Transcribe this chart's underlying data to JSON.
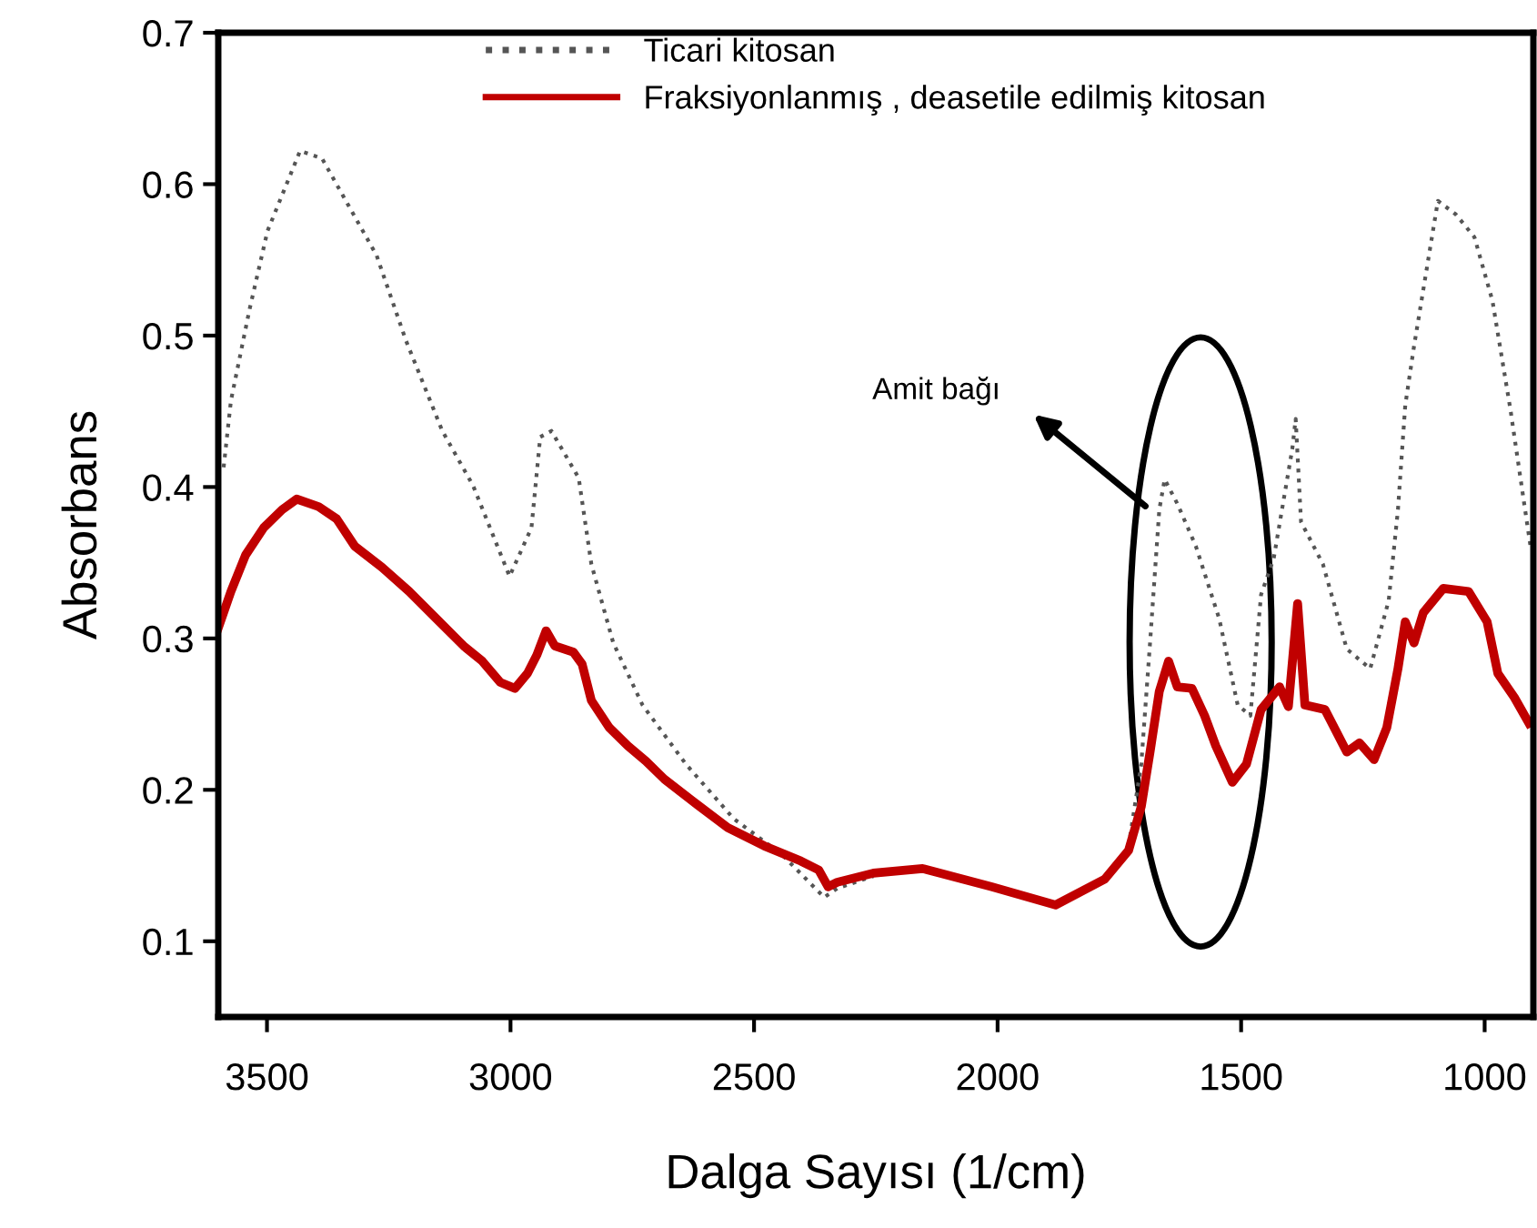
{
  "chart_data": {
    "type": "line",
    "xlabel": "Dalga Sayısı (1/cm)",
    "ylabel": "Absorbans",
    "xlim": [
      3600,
      900
    ],
    "xticks": [
      3500,
      3000,
      2500,
      2000,
      1500,
      1000
    ],
    "ylim": [
      0.05,
      0.7
    ],
    "yticks": [
      0.1,
      0.2,
      0.3,
      0.4,
      0.5,
      0.6,
      0.7
    ],
    "grid": false,
    "legend": "top",
    "annotations": [
      "Amit bağı"
    ],
    "series": [
      {
        "name": "Ticari kitosan",
        "color": "#555555",
        "line_style": "dotted",
        "x": [
          3589,
          3574,
          3536,
          3499,
          3432,
          3387,
          3338,
          3275,
          3215,
          3140,
          3077,
          3002,
          2957,
          2939,
          2916,
          2860,
          2834,
          2789,
          2729,
          2640,
          2542,
          2442,
          2356,
          2329,
          2255,
          2154,
          2012,
          1881,
          1780,
          1731,
          1705,
          1687,
          1668,
          1657,
          1631,
          1593,
          1545,
          1507,
          1481,
          1459,
          1433,
          1395,
          1388,
          1377,
          1332,
          1283,
          1235,
          1197,
          1178,
          1163,
          1145,
          1096,
          1059,
          1021,
          984,
          947,
          917,
          906
        ],
        "values": [
          0.413,
          0.457,
          0.517,
          0.569,
          0.622,
          0.617,
          0.589,
          0.553,
          0.497,
          0.437,
          0.401,
          0.341,
          0.373,
          0.433,
          0.437,
          0.406,
          0.349,
          0.297,
          0.256,
          0.217,
          0.181,
          0.157,
          0.129,
          0.135,
          0.143,
          null,
          null,
          null,
          null,
          0.163,
          0.217,
          0.297,
          0.385,
          0.405,
          0.389,
          0.361,
          0.313,
          0.256,
          0.249,
          0.329,
          0.353,
          0.425,
          0.445,
          0.377,
          0.349,
          0.293,
          0.28,
          0.325,
          0.385,
          0.454,
          0.493,
          0.589,
          0.58,
          0.565,
          0.523,
          0.451,
          0.385,
          0.361
        ]
      },
      {
        "name": "Fraksiyonlanmış , deasetile edilmiş kitosan",
        "color": "#c00000",
        "line_style": "solid",
        "x": [
          3600,
          3574,
          3544,
          3507,
          3469,
          3439,
          3394,
          3357,
          3320,
          3264,
          3208,
          3152,
          3096,
          3058,
          3021,
          2991,
          2965,
          2946,
          2927,
          2909,
          2871,
          2853,
          2834,
          2797,
          2759,
          2722,
          2684,
          2628,
          2554,
          2479,
          2404,
          2367,
          2348,
          2329,
          2255,
          2154,
          2012,
          1881,
          1780,
          1731,
          1705,
          1687,
          1668,
          1649,
          1631,
          1601,
          1575,
          1552,
          1518,
          1489,
          1459,
          1421,
          1403,
          1384,
          1369,
          1328,
          1283,
          1257,
          1227,
          1201,
          1178,
          1163,
          1145,
          1126,
          1085,
          1033,
          995,
          973,
          939,
          909
        ],
        "values": [
          0.307,
          0.331,
          0.355,
          0.373,
          0.385,
          0.392,
          0.387,
          0.379,
          0.361,
          0.347,
          0.331,
          0.313,
          0.295,
          0.285,
          0.271,
          0.267,
          0.277,
          0.289,
          0.305,
          0.295,
          0.291,
          0.283,
          0.259,
          0.241,
          0.229,
          0.219,
          0.207,
          0.193,
          0.175,
          0.163,
          0.153,
          0.147,
          0.136,
          0.139,
          0.145,
          0.148,
          0.136,
          0.124,
          0.141,
          0.16,
          0.189,
          0.225,
          0.265,
          0.285,
          0.268,
          0.267,
          0.249,
          0.229,
          0.205,
          0.217,
          0.253,
          0.268,
          0.255,
          0.323,
          0.256,
          0.253,
          0.225,
          0.231,
          0.22,
          0.241,
          0.28,
          0.311,
          0.297,
          0.317,
          0.333,
          0.331,
          0.311,
          0.277,
          0.261,
          0.244
        ]
      }
    ]
  }
}
